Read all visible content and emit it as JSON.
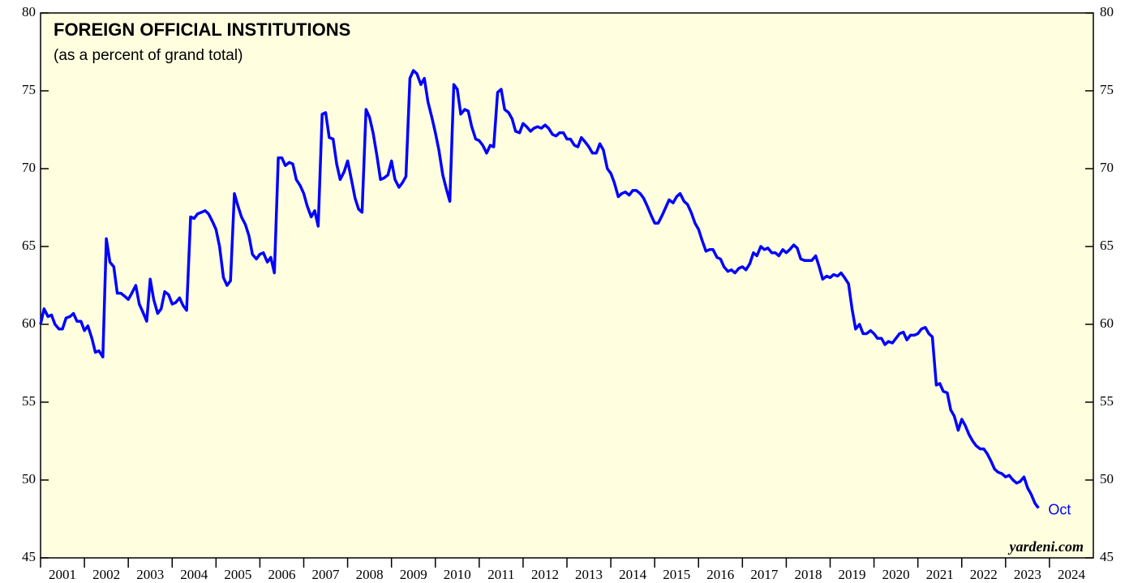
{
  "chart_data": {
    "type": "line",
    "title": "FOREIGN OFFICIAL INSTITUTIONS",
    "subtitle": "(as a percent of grand total)",
    "source": "yardeni.com",
    "annotation": "Oct",
    "xlim": [
      2001,
      2025
    ],
    "xticks": [
      2001,
      2002,
      2003,
      2004,
      2005,
      2006,
      2007,
      2008,
      2009,
      2010,
      2011,
      2012,
      2013,
      2014,
      2015,
      2016,
      2017,
      2018,
      2019,
      2020,
      2021,
      2022,
      2023,
      2024
    ],
    "ylim": [
      45,
      80
    ],
    "yticks": [
      45,
      50,
      55,
      60,
      65,
      70,
      75,
      80
    ],
    "x": [
      2001.0,
      2001.08,
      2001.17,
      2001.25,
      2001.33,
      2001.42,
      2001.5,
      2001.58,
      2001.67,
      2001.75,
      2001.83,
      2001.92,
      2002.0,
      2002.08,
      2002.17,
      2002.25,
      2002.33,
      2002.42,
      2002.5,
      2002.58,
      2002.67,
      2002.75,
      2002.83,
      2002.92,
      2003.0,
      2003.08,
      2003.17,
      2003.25,
      2003.33,
      2003.42,
      2003.5,
      2003.58,
      2003.67,
      2003.75,
      2003.83,
      2003.92,
      2004.0,
      2004.08,
      2004.17,
      2004.25,
      2004.33,
      2004.42,
      2004.5,
      2004.58,
      2004.67,
      2004.75,
      2004.83,
      2004.92,
      2005.0,
      2005.08,
      2005.17,
      2005.25,
      2005.33,
      2005.42,
      2005.5,
      2005.58,
      2005.67,
      2005.75,
      2005.83,
      2005.92,
      2006.0,
      2006.08,
      2006.17,
      2006.25,
      2006.33,
      2006.42,
      2006.5,
      2006.58,
      2006.67,
      2006.75,
      2006.83,
      2006.92,
      2007.0,
      2007.08,
      2007.17,
      2007.25,
      2007.33,
      2007.42,
      2007.5,
      2007.58,
      2007.67,
      2007.75,
      2007.83,
      2007.92,
      2008.0,
      2008.08,
      2008.17,
      2008.25,
      2008.33,
      2008.42,
      2008.5,
      2008.58,
      2008.67,
      2008.75,
      2008.83,
      2008.92,
      2009.0,
      2009.08,
      2009.17,
      2009.25,
      2009.33,
      2009.42,
      2009.5,
      2009.58,
      2009.67,
      2009.75,
      2009.83,
      2009.92,
      2010.0,
      2010.08,
      2010.17,
      2010.25,
      2010.33,
      2010.42,
      2010.5,
      2010.58,
      2010.67,
      2010.75,
      2010.83,
      2010.92,
      2011.0,
      2011.08,
      2011.17,
      2011.25,
      2011.33,
      2011.42,
      2011.5,
      2011.58,
      2011.67,
      2011.75,
      2011.83,
      2011.92,
      2012.0,
      2012.08,
      2012.17,
      2012.25,
      2012.33,
      2012.42,
      2012.5,
      2012.58,
      2012.67,
      2012.75,
      2012.83,
      2012.92,
      2013.0,
      2013.08,
      2013.17,
      2013.25,
      2013.33,
      2013.42,
      2013.5,
      2013.58,
      2013.67,
      2013.75,
      2013.83,
      2013.92,
      2014.0,
      2014.08,
      2014.17,
      2014.25,
      2014.33,
      2014.42,
      2014.5,
      2014.58,
      2014.67,
      2014.75,
      2014.83,
      2014.92,
      2015.0,
      2015.08,
      2015.17,
      2015.25,
      2015.33,
      2015.42,
      2015.5,
      2015.58,
      2015.67,
      2015.75,
      2015.83,
      2015.92,
      2016.0,
      2016.08,
      2016.17,
      2016.25,
      2016.33,
      2016.42,
      2016.5,
      2016.58,
      2016.67,
      2016.75,
      2016.83,
      2016.92,
      2017.0,
      2017.08,
      2017.17,
      2017.25,
      2017.33,
      2017.42,
      2017.5,
      2017.58,
      2017.67,
      2017.75,
      2017.83,
      2017.92,
      2018.0,
      2018.08,
      2018.17,
      2018.25,
      2018.33,
      2018.42,
      2018.5,
      2018.58,
      2018.67,
      2018.75,
      2018.83,
      2018.92,
      2019.0,
      2019.08,
      2019.17,
      2019.25,
      2019.33,
      2019.42,
      2019.5,
      2019.58,
      2019.67,
      2019.75,
      2019.83,
      2019.92,
      2020.0,
      2020.08,
      2020.17,
      2020.25,
      2020.33,
      2020.42,
      2020.5,
      2020.58,
      2020.67,
      2020.75,
      2020.83,
      2020.92,
      2021.0,
      2021.08,
      2021.17,
      2021.25,
      2021.33,
      2021.42,
      2021.5,
      2021.58,
      2021.67,
      2021.75,
      2021.83,
      2021.92,
      2022.0,
      2022.08,
      2022.17,
      2022.25,
      2022.33,
      2022.42,
      2022.5,
      2022.58,
      2022.67,
      2022.75,
      2022.83,
      2022.92,
      2023.0,
      2023.08,
      2023.17,
      2023.25,
      2023.33,
      2023.42,
      2023.5,
      2023.58,
      2023.67,
      2023.75
    ],
    "series": [
      {
        "color": "#0000ff",
        "values": [
          60,
          61,
          60.5,
          60.6,
          60,
          59.7,
          59.7,
          60.4,
          60.5,
          60.7,
          60.2,
          60.2,
          59.6,
          59.9,
          59.1,
          58.2,
          58.3,
          57.9,
          65.5,
          64,
          63.7,
          62,
          62,
          61.8,
          61.6,
          62,
          62.5,
          61.3,
          60.8,
          60.2,
          62.9,
          61.6,
          60.7,
          61,
          62.1,
          61.9,
          61.3,
          61.4,
          61.7,
          61.2,
          60.9,
          66.9,
          66.8,
          67.1,
          67.2,
          67.3,
          67.1,
          66.6,
          66.1,
          65,
          63,
          62.5,
          62.8,
          68.4,
          67.6,
          66.9,
          66.4,
          65.7,
          64.5,
          64.2,
          64.5,
          64.6,
          64,
          64.3,
          63.3,
          70.7,
          70.7,
          70.2,
          70.4,
          70.3,
          69.3,
          68.9,
          68.4,
          67.6,
          66.9,
          67.3,
          66.3,
          73.5,
          73.6,
          72,
          71.9,
          70.3,
          69.3,
          69.8,
          70.5,
          69.4,
          68.1,
          67.4,
          67.2,
          73.8,
          73.3,
          72.3,
          70.8,
          69.3,
          69.4,
          69.6,
          70.5,
          69.3,
          68.8,
          69.1,
          69.5,
          75.8,
          76.3,
          76.1,
          75.4,
          75.8,
          74.3,
          73.3,
          72.3,
          71.2,
          69.6,
          68.7,
          67.9,
          75.4,
          75.1,
          73.5,
          73.8,
          73.7,
          72.7,
          71.9,
          71.8,
          71.5,
          71,
          71.5,
          71.4,
          74.9,
          75.1,
          73.8,
          73.6,
          73.2,
          72.4,
          72.3,
          72.9,
          72.7,
          72.4,
          72.6,
          72.7,
          72.6,
          72.8,
          72.6,
          72.2,
          72.1,
          72.3,
          72.3,
          71.9,
          71.9,
          71.5,
          71.4,
          72,
          71.7,
          71.4,
          71,
          71,
          71.6,
          71.2,
          70,
          69.7,
          69.1,
          68.2,
          68.4,
          68.5,
          68.3,
          68.6,
          68.6,
          68.4,
          68.1,
          67.6,
          67,
          66.5,
          66.5,
          67,
          67.5,
          68,
          67.8,
          68.2,
          68.4,
          67.9,
          67.7,
          67.2,
          66.5,
          66.1,
          65.4,
          64.7,
          64.8,
          64.8,
          64.3,
          64.2,
          63.7,
          63.4,
          63.5,
          63.3,
          63.6,
          63.7,
          63.5,
          63.9,
          64.6,
          64.4,
          65,
          64.8,
          64.9,
          64.6,
          64.6,
          64.4,
          64.8,
          64.6,
          64.8,
          65.1,
          64.9,
          64.2,
          64.1,
          64.1,
          64.1,
          64.4,
          63.7,
          62.9,
          63.1,
          63,
          63.2,
          63.1,
          63.3,
          63,
          62.6,
          61,
          59.7,
          60,
          59.4,
          59.4,
          59.6,
          59.4,
          59.1,
          59.1,
          58.7,
          58.9,
          58.8,
          59.1,
          59.4,
          59.5,
          59,
          59.3,
          59.3,
          59.4,
          59.7,
          59.8,
          59.4,
          59.2,
          56.1,
          56.2,
          55.7,
          55.6,
          54.5,
          54.1,
          53.2,
          53.9,
          53.5,
          52.9,
          52.5,
          52.2,
          52,
          52,
          51.7,
          51.2,
          50.7,
          50.5,
          50.4,
          50.2,
          50.3,
          50,
          49.8,
          49.9,
          50.2,
          49.5,
          49.1,
          48.5,
          48.2
        ]
      }
    ],
    "grid": false
  }
}
